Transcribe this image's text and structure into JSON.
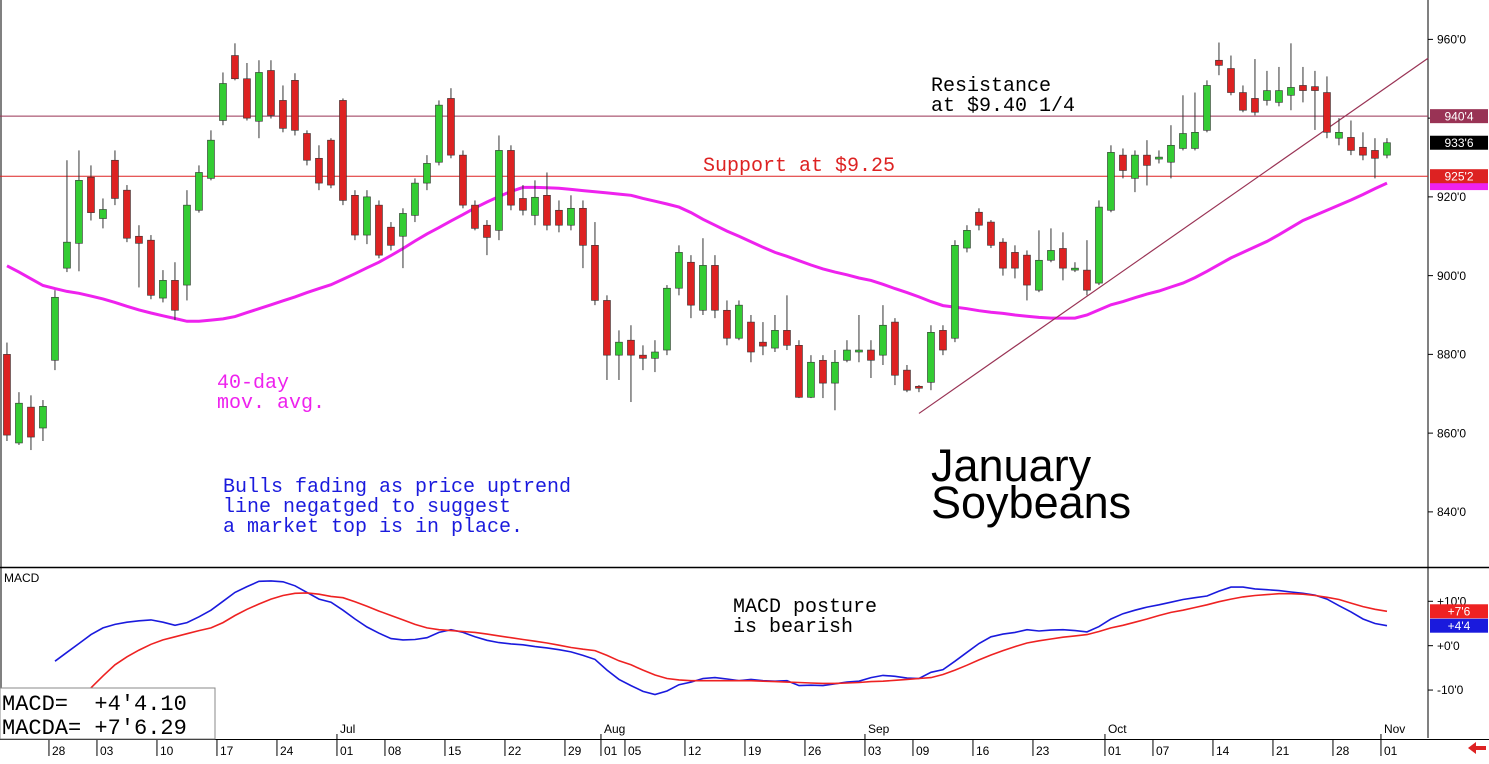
{
  "chart_data": [
    {
      "type": "candlestick",
      "title": [
        "January",
        "Soybeans"
      ],
      "up_color": "#33cc33",
      "down_color": "#dd2222",
      "open": [
        880,
        857.5,
        866.6,
        861.3,
        878.5,
        901.9,
        908.2,
        925,
        914.5,
        929.3,
        921.7,
        910,
        909,
        894.3,
        898.8,
        897.6,
        916.6,
        924.7,
        939.4,
        955.9,
        950,
        939.2,
        952.1,
        944.5,
        949.6,
        936.1,
        929.8,
        934.4,
        944.5,
        920.4,
        910.3,
        917.9,
        912.3,
        910,
        915.3,
        923.5,
        928.8,
        945,
        930.6,
        917.9,
        912.8,
        911.5,
        931.8,
        919.6,
        915.3,
        920.4,
        916.6,
        912.8,
        917.1,
        907.7,
        893.7,
        879.8,
        883.6,
        879.8,
        879,
        881.1,
        896.8,
        903.4,
        891.2,
        902.6,
        891.2,
        884.1,
        888.2,
        883.1,
        881.6,
        886.1,
        882.3,
        869.1,
        878.5,
        872.7,
        878.5,
        880.6,
        881.1,
        879.8,
        888.2,
        876,
        871.9,
        872.9,
        886.1,
        884.1,
        907,
        916.1,
        913.6,
        908.5,
        905.9,
        905.2,
        896.3,
        903.9,
        906.9,
        901.4,
        901.4,
        898.1,
        916.6,
        930.6,
        924.7,
        930.6,
        929.6,
        928.8,
        932.3,
        932.3,
        936.9,
        954.7,
        952.6,
        946.5,
        945,
        944.5,
        944,
        945.8,
        948.3,
        948,
        946.5,
        934.9,
        935.1,
        932.6,
        931.8,
        930.6
      ],
      "high": [
        883,
        870.4,
        869.6,
        868.4,
        896.3,
        929.3,
        931.8,
        928,
        919.6,
        931.8,
        923,
        912.8,
        910.3,
        901.4,
        903.4,
        921.7,
        928,
        936.9,
        951.6,
        959,
        954,
        954.7,
        954.7,
        948.3,
        951.4,
        936.9,
        933.1,
        934.9,
        945,
        921.7,
        921.7,
        919.1,
        913.6,
        917.1,
        924.7,
        930.6,
        944.5,
        947.6,
        931.8,
        919.1,
        914.1,
        935.6,
        933.1,
        923,
        924.2,
        926.2,
        919.1,
        920.4,
        919.1,
        913.6,
        895,
        886.1,
        887.4,
        882.3,
        883.6,
        897.6,
        907.7,
        905.2,
        909.5,
        905.2,
        893.7,
        893.7,
        890,
        888.2,
        890,
        895,
        883.6,
        879.8,
        879.8,
        881.1,
        883.6,
        890,
        883.6,
        892.5,
        889.2,
        877.3,
        872.2,
        887.4,
        887.4,
        909,
        912.8,
        917.1,
        914.1,
        909.5,
        907.7,
        906.4,
        911.5,
        912,
        911,
        903.4,
        909,
        919.1,
        933.1,
        932.3,
        931.8,
        934.4,
        931.8,
        938.2,
        945.8,
        946.5,
        949.6,
        959.2,
        955.9,
        948.3,
        955,
        952,
        953,
        959,
        953,
        952,
        950.6,
        940,
        939.4,
        936.4,
        934.9,
        934.9
      ],
      "low": [
        858,
        857,
        855.7,
        858,
        876,
        900.9,
        901.1,
        914,
        912,
        917.9,
        908.5,
        897,
        894,
        893.2,
        888.7,
        893.7,
        916,
        924.2,
        938.2,
        949.6,
        939.4,
        934.9,
        939.9,
        936.4,
        935.6,
        928,
        921.7,
        922.2,
        917.9,
        909,
        908,
        904.4,
        906.4,
        901.9,
        913.6,
        921.7,
        928,
        929.8,
        917.1,
        911.5,
        905.2,
        909,
        916.6,
        915.3,
        912.8,
        911.5,
        911,
        911.5,
        901.9,
        892.5,
        873.5,
        873.5,
        867.9,
        876,
        875.5,
        879.8,
        895,
        889.2,
        890,
        889.2,
        882.3,
        883.6,
        878,
        879.8,
        880.6,
        881.1,
        868.9,
        868.9,
        868.9,
        865.8,
        878,
        878,
        874,
        877.3,
        872.2,
        870.4,
        870.4,
        870.9,
        879.8,
        883.1,
        905.9,
        911.5,
        907,
        900,
        899.3,
        893.7,
        895.8,
        903.4,
        898.8,
        900.9,
        895,
        897.6,
        916.1,
        924.7,
        921.2,
        922.9,
        928.5,
        924.7,
        931.8,
        931.8,
        936.4,
        950.9,
        945.8,
        941.5,
        940.7,
        943.2,
        943,
        942,
        944,
        937,
        934.9,
        933.1,
        930.6,
        929.3,
        924.7,
        929.8
      ],
      "close": [
        859.5,
        867.6,
        859,
        866.8,
        894.5,
        908.5,
        924.2,
        916,
        916.8,
        919.6,
        909.5,
        908.2,
        895,
        898.8,
        891.2,
        917.9,
        926.2,
        934.4,
        948.8,
        950,
        940,
        951.6,
        940.7,
        937.4,
        936.9,
        929.3,
        923.5,
        923,
        919.1,
        910.3,
        920,
        905.2,
        907.7,
        915.8,
        923.5,
        928.5,
        943.3,
        930.6,
        917.9,
        912,
        909.7,
        931.8,
        917.9,
        916.6,
        919.9,
        912.8,
        912.8,
        917.1,
        907.7,
        893.7,
        879.8,
        883.1,
        879.8,
        879,
        880.6,
        896.8,
        905.9,
        892.5,
        902.6,
        891.2,
        884.1,
        892.5,
        880.6,
        882.1,
        886.1,
        882.3,
        869.1,
        878,
        872.7,
        878,
        881.1,
        881.1,
        878.5,
        887.4,
        874.7,
        870.9,
        871.4,
        885.6,
        881.1,
        907.7,
        911.5,
        912.8,
        907.7,
        901.9,
        901.9,
        897.6,
        903.9,
        906.4,
        901.9,
        901.9,
        896.3,
        917.4,
        931.3,
        926.7,
        930.6,
        928,
        930.1,
        933.1,
        936.1,
        936.4,
        948.3,
        953.4,
        946.5,
        942,
        941.5,
        947,
        947,
        947.8,
        947,
        947,
        936.4,
        936.4,
        931.8,
        930.6,
        929.8,
        933.75
      ],
      "last_label": "933'6",
      "moving_average": {
        "name": [
          "40-day",
          "mov. avg."
        ],
        "color": "#ee22ee",
        "values": [
          902.5,
          900.9,
          899.2,
          897.5,
          896.7,
          896,
          895.5,
          894.8,
          894.1,
          893.2,
          892.2,
          891.3,
          890.5,
          889.8,
          889.1,
          888.4,
          888.4,
          888.7,
          889,
          889.6,
          890.6,
          891.6,
          892.6,
          893.6,
          894.6,
          895.7,
          896.7,
          897.7,
          899.1,
          900.5,
          902,
          903.4,
          905.1,
          906.9,
          908.8,
          910.6,
          912.2,
          913.9,
          915.5,
          917.2,
          918.7,
          920.1,
          921.4,
          922.4,
          922.4,
          922.3,
          922.2,
          921.9,
          921.6,
          921.3,
          921,
          920.7,
          920.4,
          919.6,
          918.9,
          918.2,
          917.4,
          916,
          914.3,
          912.8,
          911.3,
          910,
          908.6,
          907.2,
          905.9,
          904.9,
          903.8,
          902.7,
          901.7,
          900.9,
          900.2,
          899.4,
          898.8,
          897.8,
          896.7,
          895.7,
          894.6,
          893.4,
          892.4,
          892,
          891.6,
          891.1,
          890.7,
          890.4,
          890,
          889.7,
          889.4,
          889.2,
          889.2,
          889.2,
          890,
          891.3,
          892.6,
          893.4,
          894.4,
          895.3,
          896.1,
          897.1,
          898.1,
          899.5,
          901.1,
          902.8,
          904.5,
          905.9,
          907.3,
          908.7,
          910.4,
          912.2,
          914,
          915.3,
          916.6,
          917.9,
          919.2,
          920.6,
          922.1,
          923.5
        ]
      },
      "hlines": [
        {
          "value": 940.5,
          "label": "940'4",
          "color": "#993355"
        },
        {
          "value": 925.25,
          "label": "925'2",
          "color": "#dd2222"
        }
      ],
      "trendline": {
        "x": [
          76,
          118.42
        ],
        "y": [
          865,
          955.2
        ],
        "color": "#993355"
      },
      "annotations": [
        {
          "text": [
            "Resistance",
            "at $9.40 1/4"
          ],
          "color": "#000000"
        },
        {
          "text": [
            "Support at $9.25"
          ],
          "color": "#dd2222"
        },
        {
          "text": [
            "Bulls fading as price uptrend",
            "line negatged to suggest",
            "a market top is in place."
          ],
          "color": "#1a1add"
        }
      ],
      "xlim": [
        -0.58,
        118.42
      ],
      "ylim": [
        826,
        970
      ],
      "yticks": [
        {
          "value": 960,
          "label": "960'0"
        },
        {
          "value": 940,
          "label": "940'0"
        },
        {
          "value": 920,
          "label": "920'0"
        },
        {
          "value": 900,
          "label": "900'0"
        },
        {
          "value": 880,
          "label": "880'0"
        },
        {
          "value": 860,
          "label": "860'0"
        },
        {
          "value": 840,
          "label": "840'0"
        }
      ],
      "xticks": [
        {
          "value": 4,
          "label": "28"
        },
        {
          "value": 8,
          "label": "03"
        },
        {
          "value": 13,
          "label": "10"
        },
        {
          "value": 18,
          "label": "17"
        },
        {
          "value": 23,
          "label": "24"
        },
        {
          "value": 28,
          "label": "01"
        },
        {
          "value": 32,
          "label": "08"
        },
        {
          "value": 37,
          "label": "15"
        },
        {
          "value": 42,
          "label": "22"
        },
        {
          "value": 47,
          "label": "29"
        },
        {
          "value": 50,
          "label": "01"
        },
        {
          "value": 52,
          "label": "05"
        },
        {
          "value": 57,
          "label": "12"
        },
        {
          "value": 62,
          "label": "19"
        },
        {
          "value": 67,
          "label": "26"
        },
        {
          "value": 72,
          "label": "03"
        },
        {
          "value": 76,
          "label": "09"
        },
        {
          "value": 81,
          "label": "16"
        },
        {
          "value": 86,
          "label": "23"
        },
        {
          "value": 92,
          "label": "01"
        },
        {
          "value": 96,
          "label": "07"
        },
        {
          "value": 101,
          "label": "14"
        },
        {
          "value": 106,
          "label": "21"
        },
        {
          "value": 111,
          "label": "28"
        },
        {
          "value": 115,
          "label": "01"
        }
      ],
      "month_ticks": [
        {
          "value": 28,
          "label": "Jul"
        },
        {
          "value": 50,
          "label": "Aug"
        },
        {
          "value": 72,
          "label": "Sep"
        },
        {
          "value": 92,
          "label": "Oct"
        },
        {
          "value": 115,
          "label": "Nov"
        }
      ]
    },
    {
      "type": "line",
      "label": "MACD",
      "annotation": [
        "MACD posture",
        "is bearish"
      ],
      "series": [
        {
          "color": "#1a1add",
          "last_label": "+4'4",
          "readout": "MACD=  +4'4.10",
          "values": [
            null,
            null,
            null,
            null,
            -3.5,
            -1.5,
            0.5,
            2.5,
            4,
            4.8,
            5.3,
            5.6,
            5.8,
            5.3,
            4.6,
            5.2,
            6.5,
            8,
            10,
            12,
            13.3,
            14.5,
            14.6,
            14.4,
            13.5,
            12,
            10.5,
            9.8,
            8,
            6,
            4.2,
            2.8,
            1.6,
            1.3,
            1.4,
            1.8,
            3,
            3.6,
            3,
            2,
            1.2,
            0.7,
            0.4,
            0.2,
            -0.2,
            -0.5,
            -0.9,
            -1.4,
            -2.2,
            -3.1,
            -5.5,
            -7.6,
            -9,
            -10.3,
            -11,
            -10.2,
            -8.8,
            -8.2,
            -7.4,
            -7.2,
            -7.5,
            -7.9,
            -7.6,
            -7.9,
            -8,
            -7.9,
            -9,
            -8.9,
            -9,
            -8.6,
            -8.2,
            -8,
            -7.2,
            -6.7,
            -6.9,
            -7.3,
            -7.4,
            -6,
            -5.4,
            -3.5,
            -1.5,
            0.5,
            2,
            2.6,
            3,
            3.6,
            3.3,
            3.5,
            3.6,
            3.4,
            3.1,
            4.3,
            6,
            7.2,
            8,
            8.7,
            9.2,
            9.8,
            10.4,
            10.8,
            11.2,
            12.3,
            13.2,
            13.2,
            12.8,
            12.6,
            12.4,
            12.1,
            11.8,
            11.4,
            10.5,
            9,
            7.6,
            6,
            5,
            4.5
          ]
        },
        {
          "color": "#ee2222",
          "last_label": "+7'6",
          "readout": "MACDA= +7'6.29",
          "values": [
            null,
            null,
            null,
            null,
            null,
            null,
            null,
            -9.5,
            -6.8,
            -4.3,
            -2.5,
            -1,
            0.3,
            1.3,
            2,
            2.7,
            3.4,
            4,
            5.2,
            6.8,
            8.2,
            9.4,
            10.5,
            11.3,
            11.8,
            11.9,
            11.6,
            11.1,
            10.8,
            9.9,
            8.9,
            7.8,
            6.8,
            5.8,
            4.8,
            4,
            3.6,
            3.4,
            3.2,
            3,
            2.6,
            2.2,
            1.8,
            1.4,
            1,
            0.6,
            0.1,
            -0.4,
            -0.8,
            -1.1,
            -2.2,
            -3.4,
            -4.3,
            -5.5,
            -6.6,
            -7.4,
            -7.7,
            -7.9,
            -7.9,
            -7.9,
            -7.9,
            -7.9,
            -7.9,
            -8,
            -8.1,
            -8.2,
            -8.3,
            -8.4,
            -8.5,
            -8.5,
            -8.4,
            -8.3,
            -8.1,
            -8,
            -7.8,
            -7.6,
            -7.4,
            -7.2,
            -6.5,
            -5.5,
            -4.4,
            -3.2,
            -2.1,
            -1.1,
            -0.2,
            0.6,
            1.1,
            1.5,
            1.9,
            2.2,
            2.5,
            3.2,
            4,
            4.6,
            5.3,
            6,
            6.8,
            7.5,
            8,
            8.6,
            9.2,
            9.9,
            10.5,
            11,
            11.3,
            11.5,
            11.7,
            11.7,
            11.6,
            11.3,
            10.9,
            10.4,
            9.6,
            8.8,
            8.2,
            7.75
          ]
        }
      ],
      "ylim": [
        -20.8,
        17.5
      ],
      "yticks": [
        {
          "value": 10,
          "label": "+10'0"
        },
        {
          "value": 0,
          "label": "+0'0"
        },
        {
          "value": -10,
          "label": "-10'0"
        }
      ]
    }
  ]
}
